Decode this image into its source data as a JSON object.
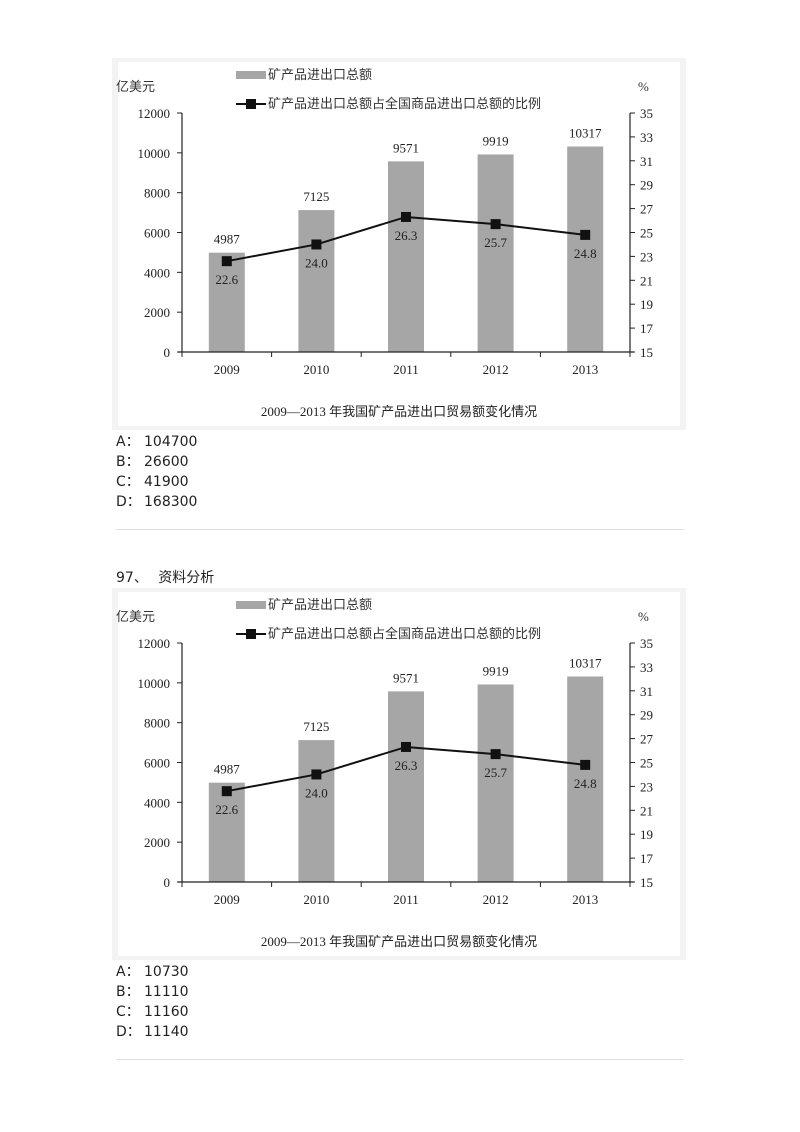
{
  "questions": [
    {
      "number": "",
      "title": "",
      "chart": {
        "legend_bar": "矿产品进出口总额",
        "legend_line": "矿产品进出口总额占全国商品进出口总额的比例",
        "left_unit": "亿美元",
        "right_unit": "%",
        "caption": "2009—2013 年我国矿产品进出口贸易额变化情况"
      },
      "options": [
        {
          "letter": "A：",
          "value": "104700"
        },
        {
          "letter": "B：",
          "value": "26600"
        },
        {
          "letter": "C：",
          "value": "41900"
        },
        {
          "letter": "D：",
          "value": "168300"
        }
      ]
    },
    {
      "number": "97、",
      "title": "资料分析",
      "chart": {
        "legend_bar": "矿产品进出口总额",
        "legend_line": "矿产品进出口总额占全国商品进出口总额的比例",
        "left_unit": "亿美元",
        "right_unit": "%",
        "caption": "2009—2013 年我国矿产品进出口贸易额变化情况"
      },
      "options": [
        {
          "letter": "A：",
          "value": "10730"
        },
        {
          "letter": "B：",
          "value": "11110"
        },
        {
          "letter": "C：",
          "value": "11160"
        },
        {
          "letter": "D：",
          "value": "11140"
        }
      ]
    }
  ],
  "colors": {
    "bar": "#a6a6a6",
    "line": "#111111",
    "panel_border": "#f3f3f3",
    "separator": "#dedede"
  },
  "chart_data": [
    {
      "type": "bar",
      "title": "2009—2013 年我国矿产品进出口贸易额变化情况",
      "categories": [
        "2009",
        "2010",
        "2011",
        "2012",
        "2013"
      ],
      "series": [
        {
          "name": "矿产品进出口总额",
          "type": "bar",
          "axis": "left",
          "values": [
            4987,
            7125,
            9571,
            9919,
            10317
          ]
        },
        {
          "name": "矿产品进出口总额占全国商品进出口总额的比例",
          "type": "line",
          "axis": "right",
          "values": [
            22.6,
            24.0,
            26.3,
            25.7,
            24.8
          ]
        }
      ],
      "ylabel": "亿美元",
      "ylim": [
        0,
        12000
      ],
      "yticks": [
        0,
        2000,
        4000,
        6000,
        8000,
        10000,
        12000
      ],
      "y2label": "%",
      "y2lim": [
        15,
        35
      ],
      "y2ticks": [
        15,
        17,
        19,
        21,
        23,
        25,
        27,
        29,
        31,
        33,
        35
      ],
      "grid": false,
      "legend_position": "top"
    },
    {
      "type": "bar",
      "title": "2009—2013 年我国矿产品进出口贸易额变化情况",
      "categories": [
        "2009",
        "2010",
        "2011",
        "2012",
        "2013"
      ],
      "series": [
        {
          "name": "矿产品进出口总额",
          "type": "bar",
          "axis": "left",
          "values": [
            4987,
            7125,
            9571,
            9919,
            10317
          ]
        },
        {
          "name": "矿产品进出口总额占全国商品进出口总额的比例",
          "type": "line",
          "axis": "right",
          "values": [
            22.6,
            24.0,
            26.3,
            25.7,
            24.8
          ]
        }
      ],
      "ylabel": "亿美元",
      "ylim": [
        0,
        12000
      ],
      "yticks": [
        0,
        2000,
        4000,
        6000,
        8000,
        10000,
        12000
      ],
      "y2label": "%",
      "y2lim": [
        15,
        35
      ],
      "y2ticks": [
        15,
        17,
        19,
        21,
        23,
        25,
        27,
        29,
        31,
        33,
        35
      ],
      "grid": false,
      "legend_position": "top"
    }
  ]
}
